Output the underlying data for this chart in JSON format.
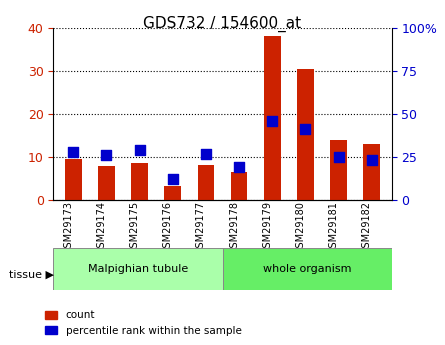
{
  "title": "GDS732 / 154600_at",
  "samples": [
    "GSM29173",
    "GSM29174",
    "GSM29175",
    "GSM29176",
    "GSM29177",
    "GSM29178",
    "GSM29179",
    "GSM29180",
    "GSM29181",
    "GSM29182"
  ],
  "count_values": [
    9.5,
    7.8,
    8.5,
    3.2,
    8.2,
    6.5,
    38.0,
    30.5,
    14.0,
    13.0
  ],
  "percentile_values": [
    28,
    26,
    29,
    12,
    27,
    19,
    46,
    41,
    25,
    23
  ],
  "groups": [
    {
      "label": "Malpighian tubule",
      "start": 0,
      "end": 5,
      "color": "#aaffaa"
    },
    {
      "label": "whole organism",
      "start": 5,
      "end": 10,
      "color": "#66ee66"
    }
  ],
  "tissue_label": "tissue",
  "left_ylim": [
    0,
    40
  ],
  "left_yticks": [
    0,
    10,
    20,
    30,
    40
  ],
  "right_ylim": [
    0,
    100
  ],
  "right_yticks": [
    0,
    25,
    50,
    75,
    100
  ],
  "right_yticklabels": [
    "0",
    "25",
    "50",
    "75",
    "100%"
  ],
  "bar_color": "#cc2200",
  "dot_color": "#0000cc",
  "grid_color": "#000000",
  "bg_color": "#ffffff",
  "left_tick_color": "#cc2200",
  "right_tick_color": "#0000cc",
  "legend_count_label": "count",
  "legend_pct_label": "percentile rank within the sample",
  "bar_width": 0.5,
  "dot_size": 55
}
